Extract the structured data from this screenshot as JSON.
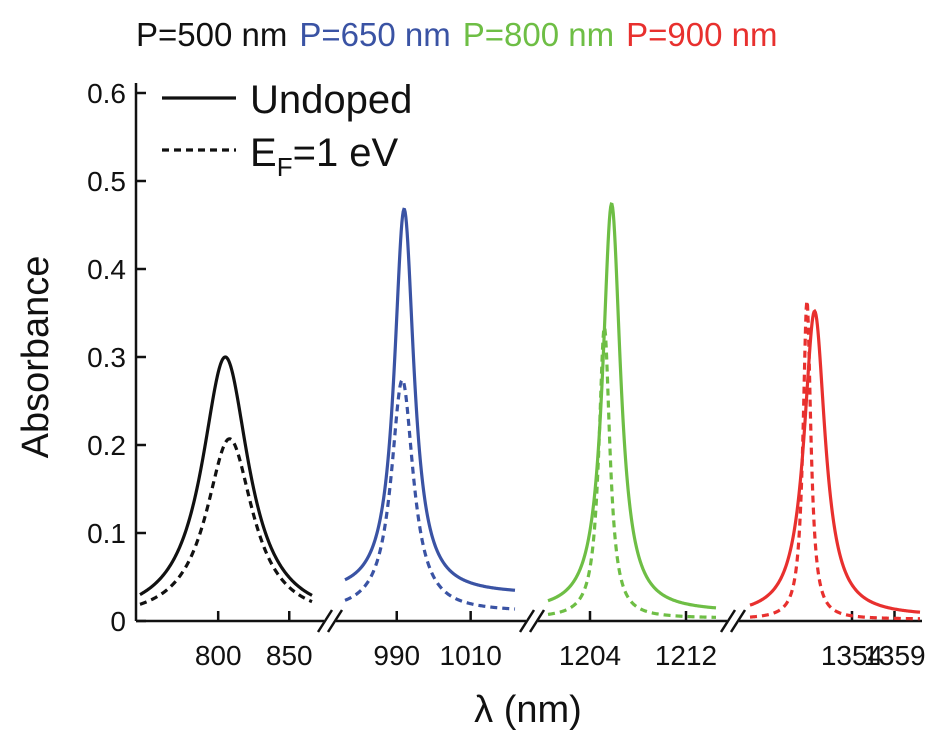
{
  "chart_data": {
    "type": "line",
    "ylabel": "Absorbance",
    "xlabel": "λ (nm)",
    "ylim": [
      0,
      0.6
    ],
    "y_ticks": [
      "0",
      "0.1",
      "0.2",
      "0.3",
      "0.4",
      "0.5",
      "0.6"
    ],
    "broken_x_axis": true,
    "legend": {
      "position": "top-left",
      "entries": [
        {
          "label": "Undoped",
          "style": "solid"
        },
        {
          "label_main": "E",
          "label_sub": "F",
          "label_rest": "=1 eV",
          "style": "dashed"
        }
      ]
    },
    "panels": [
      {
        "title": "P=500 nm",
        "color": "#111111",
        "x_range": [
          745,
          866
        ],
        "x_ticks": [
          800,
          850
        ],
        "series": [
          {
            "name": "Undoped",
            "style": "solid",
            "peak_x": 805,
            "peak_y": 0.3,
            "width": 20,
            "baseline": 0.0
          },
          {
            "name": "EF=1 eV",
            "style": "dashed",
            "peak_x": 808,
            "peak_y": 0.207,
            "width": 20,
            "baseline": 0.0
          }
        ]
      },
      {
        "title": "P=650 nm",
        "color": "#3a53a4",
        "x_range": [
          976,
          1022
        ],
        "x_ticks": [
          990,
          1010
        ],
        "series": [
          {
            "name": "Undoped",
            "style": "solid",
            "peak_x": 992.0,
            "peak_y": 0.468,
            "width": 3.2,
            "baseline": 0.03
          },
          {
            "name": "EF=1 eV",
            "style": "dashed",
            "peak_x": 991.5,
            "peak_y": 0.274,
            "width": 3.6,
            "baseline": 0.01
          }
        ]
      },
      {
        "title": "P=800 nm",
        "color": "#6ebe45",
        "x_range": [
          1200.5,
          1214.5
        ],
        "x_ticks": [
          1204,
          1212
        ],
        "series": [
          {
            "name": "Undoped",
            "style": "solid",
            "peak_x": 1205.8,
            "peak_y": 0.474,
            "width": 0.9,
            "baseline": 0.01
          },
          {
            "name": "EF=1 eV",
            "style": "dashed",
            "peak_x": 1205.2,
            "peak_y": 0.334,
            "width": 0.55,
            "baseline": 0.003
          }
        ]
      },
      {
        "title": "P=900 nm",
        "color": "#e8302e",
        "x_range": [
          1342,
          1362
        ],
        "x_ticks": [
          1354,
          1359
        ],
        "series": [
          {
            "name": "Undoped",
            "style": "solid",
            "peak_x": 1349.6,
            "peak_y": 0.352,
            "width": 1.5,
            "baseline": 0.005
          },
          {
            "name": "EF=1 eV",
            "style": "dashed",
            "peak_x": 1348.7,
            "peak_y": 0.364,
            "width": 0.55,
            "baseline": 0.002
          }
        ]
      }
    ]
  }
}
